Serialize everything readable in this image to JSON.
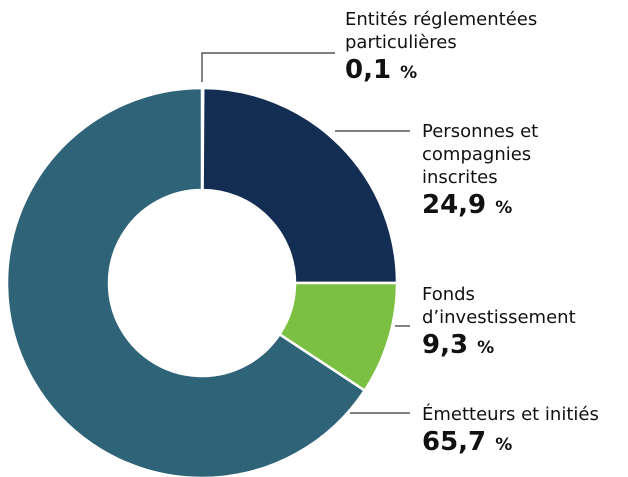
{
  "chart_data": {
    "type": "donut",
    "categories": [
      "Entités réglementées particulières",
      "Personnes et compagnies inscrites",
      "Fonds d’investissement",
      "Émetteurs et initiés"
    ],
    "values": [
      0.1,
      24.9,
      9.3,
      65.7
    ],
    "value_labels": [
      "0,1 %",
      "24,9 %",
      "9,3 %",
      "65,7 %"
    ],
    "colors": [
      "#2e6378",
      "#142d52",
      "#7bc043",
      "#2e6378"
    ]
  }
}
